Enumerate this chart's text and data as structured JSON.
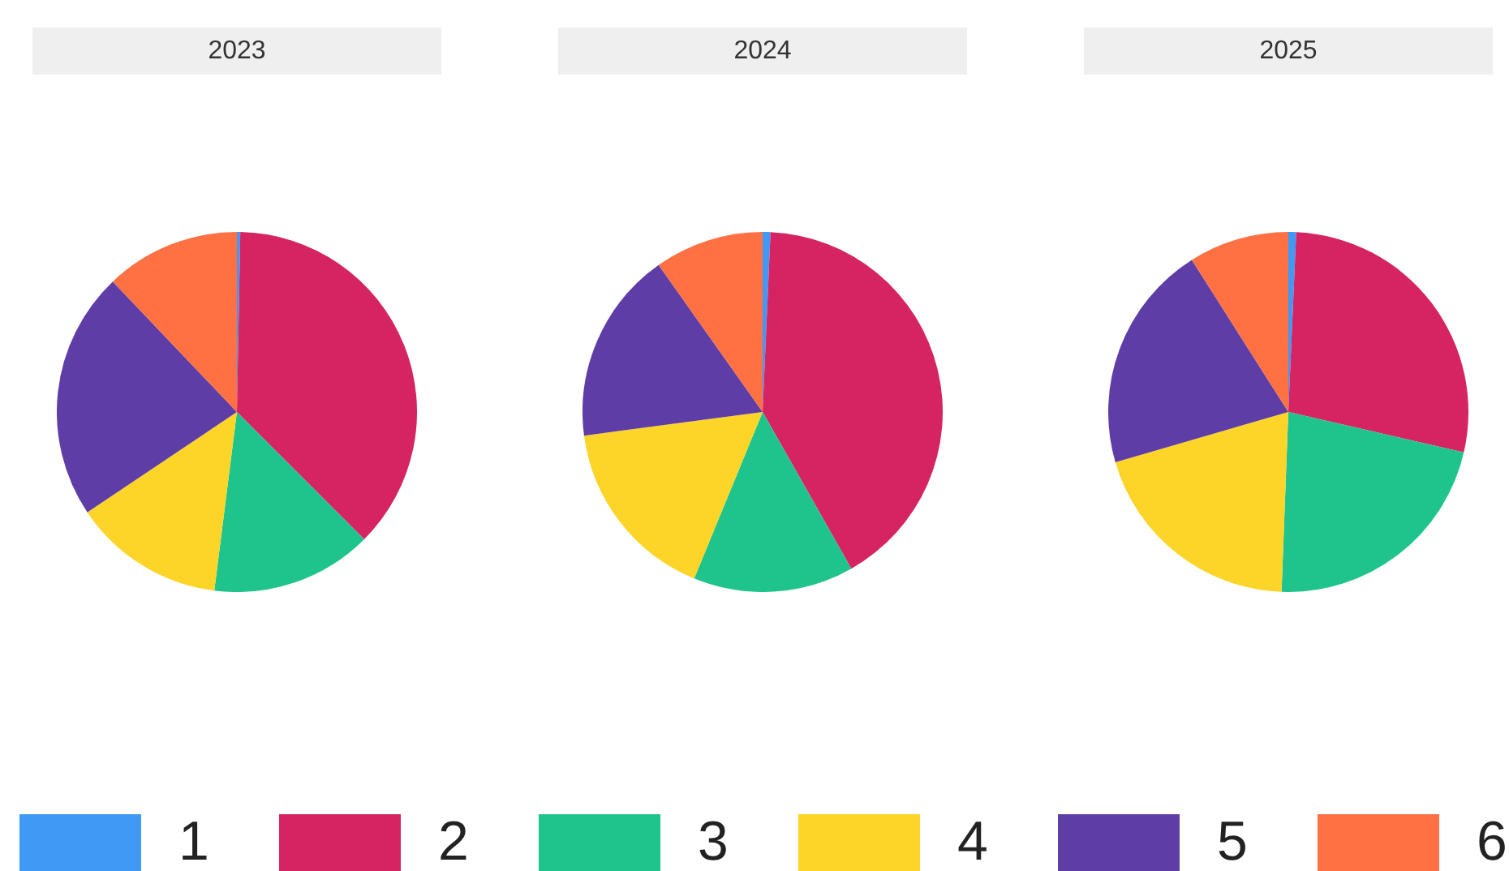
{
  "chart_data": [
    {
      "type": "pie",
      "title": "2023",
      "categories": [
        "1",
        "2",
        "3",
        "4",
        "5",
        "6"
      ],
      "values": [
        0.3,
        37.2,
        14.5,
        13.6,
        22.3,
        12.1
      ],
      "colors": [
        "#3f99f5",
        "#d62463",
        "#1fc48c",
        "#fdd428",
        "#5e3ea6",
        "#ff7043"
      ],
      "legend": "bottom"
    },
    {
      "type": "pie",
      "title": "2024",
      "values": [
        0.7,
        41.1,
        14.4,
        16.7,
        17.3,
        9.8
      ],
      "colors": [
        "#3f99f5",
        "#d62463",
        "#1fc48c",
        "#fdd428",
        "#5e3ea6",
        "#ff7043"
      ]
    },
    {
      "type": "pie",
      "title": "2025",
      "values": [
        0.7,
        27.9,
        22.0,
        19.9,
        20.5,
        9.0
      ],
      "colors": [
        "#3f99f5",
        "#d62463",
        "#1fc48c",
        "#fdd428",
        "#5e3ea6",
        "#ff7043"
      ]
    }
  ]
}
